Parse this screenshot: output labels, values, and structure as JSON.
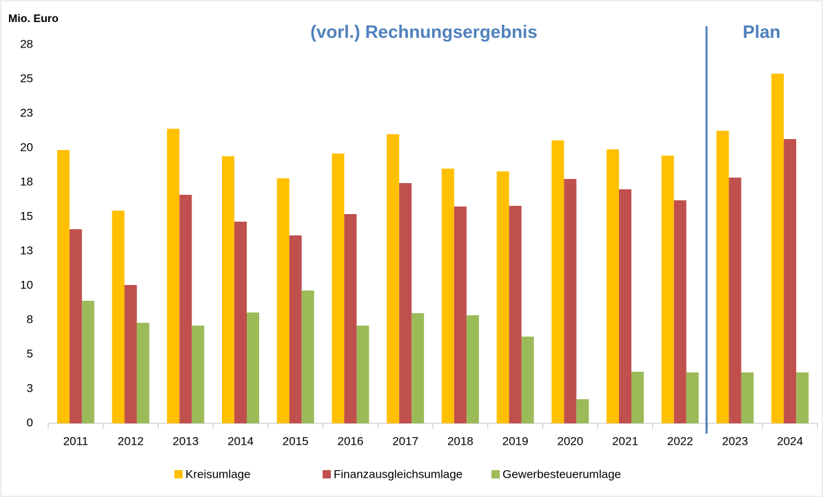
{
  "chart_data": {
    "type": "bar",
    "y_label": "Mio. Euro",
    "annotations": [
      "(vorl.) Rechnungsergebnis",
      "Plan"
    ],
    "categories": [
      "2011",
      "2012",
      "2013",
      "2014",
      "2015",
      "2016",
      "2017",
      "2018",
      "2019",
      "2020",
      "2021",
      "2022",
      "2023",
      "2024"
    ],
    "series": [
      {
        "name": "Kreisumlage",
        "color": "#FFC000",
        "values": [
          19.85,
          15.45,
          21.4,
          19.4,
          17.8,
          19.6,
          21.0,
          18.5,
          18.3,
          20.55,
          19.9,
          19.45,
          21.25,
          25.4
        ]
      },
      {
        "name": "Finanzausgleichsumlage",
        "color": "#C0504D",
        "values": [
          14.1,
          10.05,
          16.6,
          14.65,
          13.65,
          15.2,
          17.45,
          15.75,
          15.8,
          17.75,
          17.0,
          16.2,
          17.85,
          20.65
        ]
      },
      {
        "name": "Gewerbesteuerumlage",
        "color": "#9BBB59",
        "values": [
          8.9,
          7.3,
          7.1,
          8.05,
          9.65,
          7.1,
          8.0,
          7.85,
          6.3,
          1.75,
          3.75,
          3.7,
          3.7,
          3.7
        ]
      }
    ],
    "ylim": [
      0,
      27.5
    ],
    "yticks": [
      0,
      {
        "value": 2.5,
        "label": "3"
      },
      5,
      {
        "value": 7.5,
        "label": "8"
      },
      10,
      {
        "value": 12.5,
        "label": "13"
      },
      15,
      {
        "value": 17.5,
        "label": "18"
      },
      20,
      {
        "value": 22.5,
        "label": "23"
      },
      25,
      {
        "value": 27.5,
        "label": "28"
      }
    ],
    "grid": false,
    "legend": "bottom"
  }
}
